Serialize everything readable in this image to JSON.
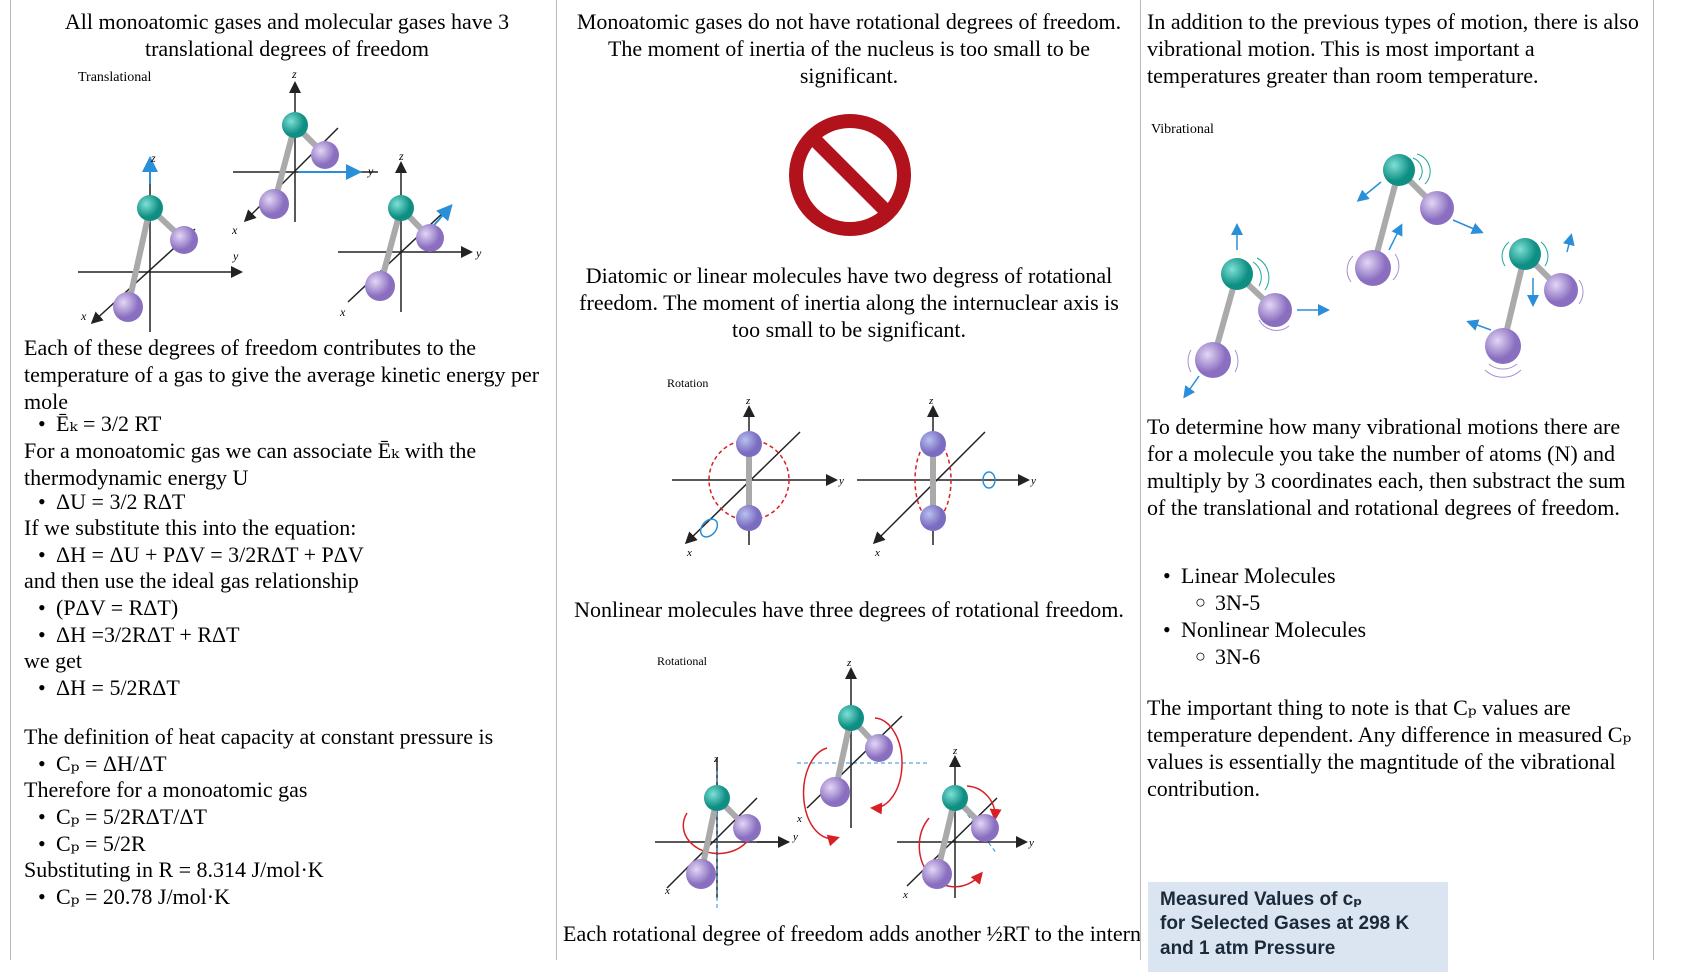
{
  "col1": {
    "intro": "All monoatomic gases and molecular gases have 3 translational degrees of freedom",
    "fig_label": "Translational",
    "p1": "Each of these degrees of freedom contributes to the temperature of a gas to give the average kinetic energy per mole",
    "b1": "Ēₖ = 3/2 RT",
    "p2": "For a monoatomic gas we can associate Ēₖ with the thermodynamic energy U",
    "b2": "ΔU = 3/2 RΔT",
    "p3": "If we substitute this into the equation:",
    "b3": "ΔH = ΔU + PΔV = 3/2RΔT + PΔV",
    "p4": "and then use the ideal gas relationship",
    "b4": "(PΔV = RΔT)",
    "b5": "ΔH =3/2RΔT + RΔT",
    "p5": "we get",
    "b6": "ΔH = 5/2RΔT",
    "p6": "The definition of heat capacity at constant pressure is",
    "b7": "Cₚ = ΔH/ΔT",
    "p7": "Therefore for a monoatomic gas",
    "b8": "Cₚ = 5/2RΔT/ΔT",
    "b9": "Cₚ = 5/2R",
    "p8": "Substituting in R = 8.314 J/mol·K",
    "b10": "Cₚ = 20.78 J/mol·K"
  },
  "col2": {
    "intro": "Monoatomic gases do not have rotational degrees of freedom. The moment of inertia of the nucleus is too small to be significant.",
    "diatomic": "Diatomic or linear molecules have two degress of rotational freedom. The moment of inertia along the internuclear axis is too small to be significant.",
    "fig_label_rotation": "Rotation",
    "nonlinear": "Nonlinear molecules have three degrees of rotational freedom.",
    "fig_label_rotational": "Rotational",
    "footer": "Each rotational degree of freedom adds another ½RT to the internal energy"
  },
  "col3": {
    "intro": "In addition to the previous types of motion, there is also vibrational motion. This is most important a temperatures greater than room temperature.",
    "fig_label": "Vibrational",
    "p1": "To determine how many vibrational motions there are for a molecule you take the number of atoms (N) and multiply by 3 coordinates each, then substract the sum of the translational and rotational degrees of freedom.",
    "list": [
      {
        "label": "Linear Molecules",
        "sub": "3N-5"
      },
      {
        "label": "Nonlinear Molecules",
        "sub": "3N-6"
      }
    ],
    "p2": "The important thing to note is that Cₚ values are temperature dependent. Any difference in measured Cₚ values is essentially the magntitude of the vibrational contribution.",
    "table_title_1": "Measured Values of cₚ",
    "table_title_2": "for Selected Gases at 298 K",
    "table_title_3": "and 1 atm Pressure"
  },
  "axis_labels": {
    "x": "x",
    "y": "y",
    "z": "z"
  },
  "colors": {
    "teal_atom": "#1aa69a",
    "purple_atom": "#a88fd0",
    "axis_blue": "#2a8fd8",
    "rotation_red": "#d81f26",
    "no_sign_red": "#b2121b",
    "table_bg": "#dbe5f1"
  }
}
